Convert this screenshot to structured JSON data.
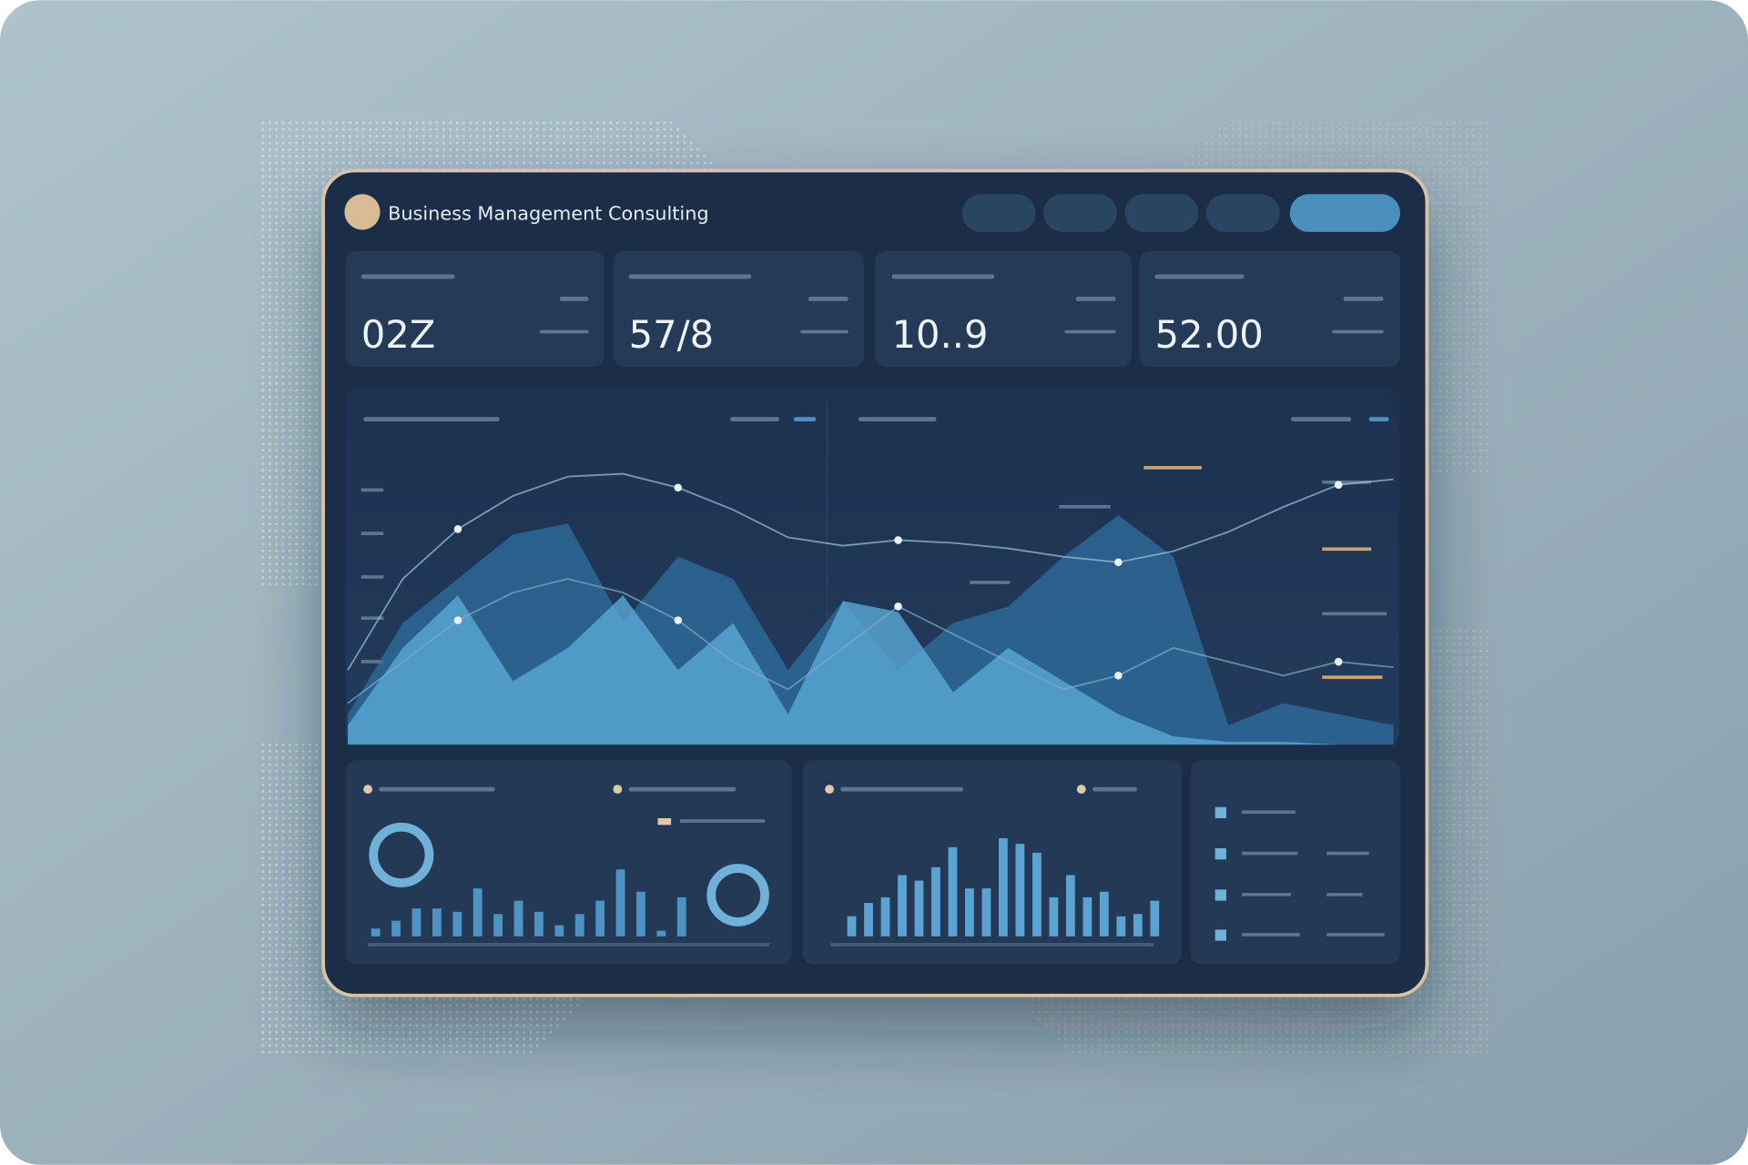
{
  "header": {
    "title": "Business Management Consulting"
  },
  "kpis": [
    {
      "value": "02Z"
    },
    {
      "value": "57/8"
    },
    {
      "value": "10..9"
    },
    {
      "value": "52.00"
    }
  ],
  "main_chart": {
    "type": "area",
    "series": [
      {
        "kind": "area",
        "color": "#2f6f9f",
        "values": [
          11,
          44,
          60,
          76,
          80,
          44,
          68,
          60,
          27,
          52,
          27,
          44,
          50,
          68,
          83,
          68,
          7,
          15,
          11,
          7
        ]
      },
      {
        "kind": "area",
        "color": "#5aa9d6",
        "values": [
          7,
          35,
          54,
          23,
          35,
          54,
          27,
          44,
          11,
          52,
          48,
          19,
          35,
          23,
          11,
          3,
          1,
          1,
          0,
          0
        ]
      },
      {
        "kind": "line",
        "color": "#9cc4e0",
        "values": [
          27,
          60,
          78,
          90,
          97,
          98,
          93,
          85,
          75,
          72,
          74,
          73,
          71,
          68,
          66,
          70,
          77,
          86,
          94,
          96
        ]
      },
      {
        "kind": "line",
        "color": "#7fa9c8",
        "values": [
          15,
          30,
          45,
          55,
          60,
          55,
          45,
          30,
          20,
          35,
          50,
          40,
          30,
          20,
          25,
          35,
          30,
          25,
          30,
          28
        ]
      }
    ]
  },
  "bar_charts": [
    {
      "type": "bar",
      "color": "#4f93c4",
      "values": [
        7,
        14,
        25,
        25,
        22,
        43,
        20,
        32,
        22,
        10,
        20,
        32,
        60,
        40,
        5,
        35
      ]
    },
    {
      "type": "bar",
      "color": "#5aa3d3",
      "values": [
        18,
        30,
        35,
        55,
        50,
        62,
        80,
        43,
        43,
        88,
        83,
        75,
        35,
        55,
        35,
        40,
        18,
        20,
        32
      ]
    }
  ]
}
